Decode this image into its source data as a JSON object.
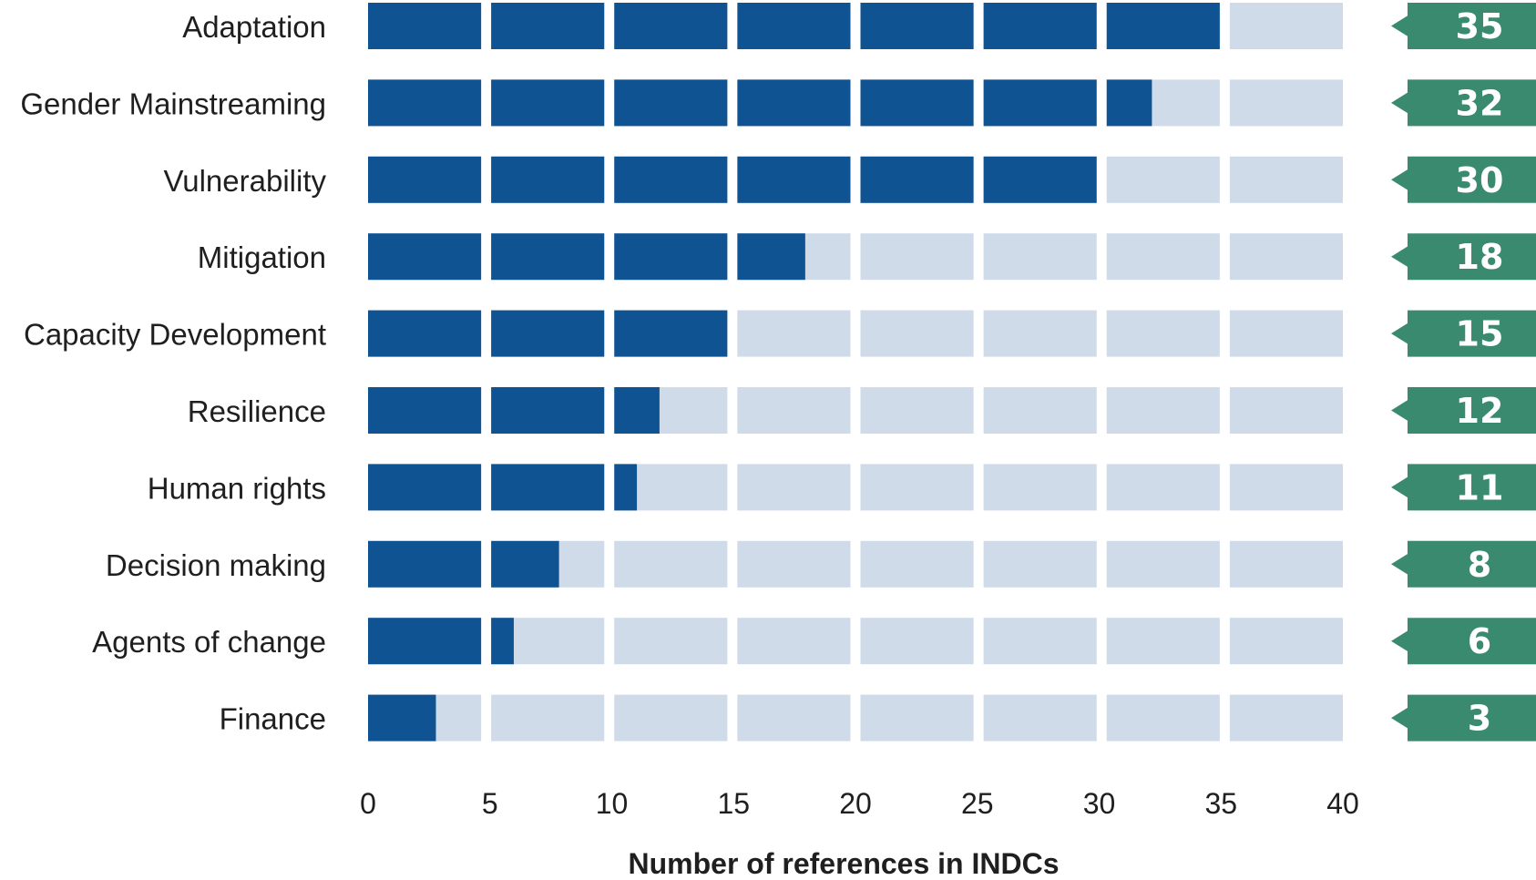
{
  "chart_data": {
    "type": "bar",
    "orientation": "horizontal",
    "categories": [
      "Adaptation",
      "Gender Mainstreaming",
      "Vulnerability",
      "Mitigation",
      "Capacity Development",
      "Resilience",
      "Human rights",
      "Decision making",
      "Agents of change",
      "Finance"
    ],
    "values": [
      35,
      32,
      30,
      18,
      15,
      12,
      11,
      8,
      6,
      3
    ],
    "value_labels": [
      "35",
      "32",
      "30",
      "18",
      "15",
      "12",
      "11",
      "8",
      "6",
      "3"
    ],
    "title": "",
    "xlabel": "Number of references in INDCs",
    "ylabel": "",
    "xlim": [
      0,
      40
    ],
    "xticks": [
      0,
      5,
      10,
      15,
      20,
      25,
      30,
      35,
      40
    ],
    "xtick_labels": [
      "0",
      "5",
      "10",
      "15",
      "20",
      "25",
      "30",
      "35",
      "40"
    ],
    "segment_size": 5,
    "grid": false,
    "legend": "none",
    "colors": {
      "bar": "#0f5392",
      "track": "#cfdbe8",
      "badge": "#3a8a70"
    }
  }
}
